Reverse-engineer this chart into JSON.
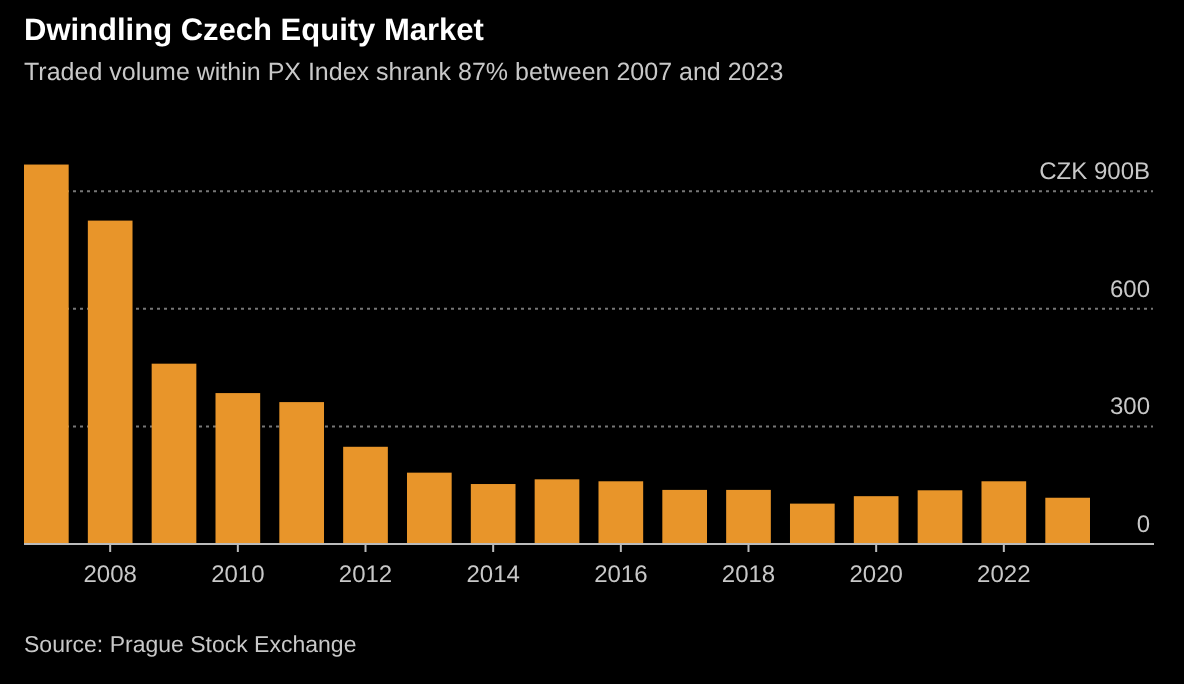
{
  "chart_data": {
    "type": "bar",
    "title": "Dwindling Czech Equity Market",
    "subtitle": "Traded volume within PX Index shrank 87% between 2007 and 2023",
    "categories": [
      null,
      "2008",
      null,
      "2010",
      null,
      "2012",
      null,
      "2014",
      null,
      "2016",
      null,
      "2018",
      null,
      "2020",
      null,
      "2022",
      null
    ],
    "values": [
      968,
      825,
      460,
      385,
      362,
      248,
      182,
      153,
      165,
      160,
      138,
      138,
      103,
      122,
      137,
      160,
      118
    ],
    "color": "#e8952a",
    "ylim": [
      0,
      1000
    ],
    "yticks": [
      0,
      300,
      600,
      {
        "value": 900,
        "label": "CZK 900B"
      }
    ],
    "grid": "y",
    "annotations": [
      "Source: Prague Stock Exchange"
    ]
  }
}
